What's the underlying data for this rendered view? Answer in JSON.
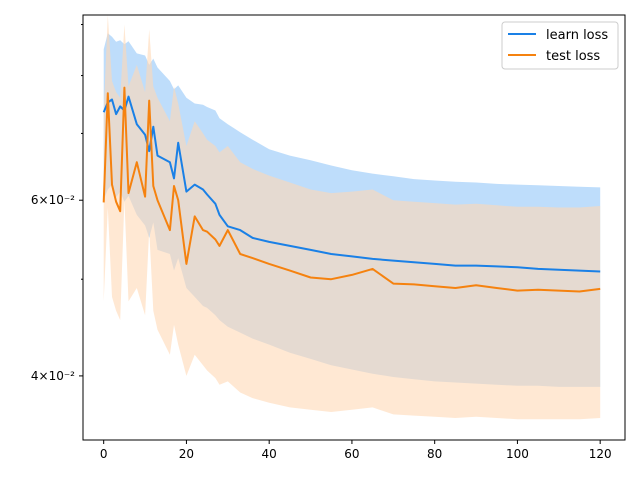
{
  "chart_data": {
    "type": "line",
    "title": "",
    "xlabel": "",
    "ylabel": "",
    "y_scale": "log",
    "xlim": [
      -5,
      126
    ],
    "ylim": [
      0.0345,
      0.092
    ],
    "grid": false,
    "legend_position": "top-right",
    "x_ticks": [
      0,
      20,
      40,
      60,
      80,
      100,
      120
    ],
    "x_tick_labels": [
      "0",
      "20",
      "40",
      "60",
      "80",
      "100",
      "120"
    ],
    "y_major_ticks": [
      0.04,
      0.06
    ],
    "y_tick_labels": [
      "4×10⁻²",
      "6×10⁻²"
    ],
    "y_minor_ticks": [
      0.05,
      0.07,
      0.08,
      0.09
    ],
    "x_anchor": [
      0,
      1,
      2,
      3,
      4,
      5,
      6,
      8,
      10,
      11,
      12,
      13,
      16,
      17,
      18,
      20,
      22,
      24,
      25,
      27,
      28,
      30,
      33,
      36,
      40,
      45,
      50,
      55,
      60,
      65,
      70,
      75,
      80,
      85,
      90,
      95,
      100,
      105,
      110,
      115,
      120
    ],
    "series": [
      {
        "name": "learn loss",
        "color": "#1f77b4",
        "line_color": "#1a80e6",
        "band_color": "#a8d2fa",
        "values": [
          0.0735,
          0.0752,
          0.0757,
          0.0732,
          0.0745,
          0.0738,
          0.0762,
          0.0715,
          0.0698,
          0.0672,
          0.0711,
          0.0665,
          0.0655,
          0.0631,
          0.0685,
          0.0612,
          0.0622,
          0.0615,
          0.0608,
          0.0595,
          0.058,
          0.0565,
          0.056,
          0.055,
          0.0545,
          0.054,
          0.0535,
          0.053,
          0.0527,
          0.0524,
          0.0522,
          0.052,
          0.0518,
          0.0516,
          0.0516,
          0.0515,
          0.0514,
          0.0512,
          0.0511,
          0.051,
          0.0509
        ],
        "upper": [
          0.085,
          0.0882,
          0.0875,
          0.0865,
          0.0868,
          0.086,
          0.0866,
          0.0842,
          0.0838,
          0.082,
          0.0832,
          0.0815,
          0.079,
          0.0775,
          0.0782,
          0.076,
          0.075,
          0.0748,
          0.0744,
          0.0738,
          0.0725,
          0.0715,
          0.0702,
          0.069,
          0.0675,
          0.0665,
          0.0658,
          0.065,
          0.0643,
          0.0638,
          0.0634,
          0.063,
          0.0628,
          0.0626,
          0.0625,
          0.0623,
          0.0622,
          0.0621,
          0.062,
          0.0619,
          0.0618
        ],
        "lower": [
          0.06,
          0.0615,
          0.0622,
          0.0604,
          0.0612,
          0.0598,
          0.0606,
          0.058,
          0.0566,
          0.055,
          0.057,
          0.0535,
          0.053,
          0.051,
          0.0525,
          0.049,
          0.048,
          0.047,
          0.0468,
          0.046,
          0.0455,
          0.0448,
          0.0442,
          0.0436,
          0.043,
          0.0422,
          0.0416,
          0.041,
          0.0406,
          0.0402,
          0.0399,
          0.0397,
          0.0395,
          0.0394,
          0.0393,
          0.0392,
          0.0391,
          0.0391,
          0.039,
          0.039,
          0.039
        ]
      },
      {
        "name": "test loss",
        "color": "#ff7f0e",
        "line_color": "#f5820f",
        "band_color": "#ffd9b6",
        "values": [
          0.0597,
          0.0768,
          0.0622,
          0.0598,
          0.0585,
          0.0778,
          0.061,
          0.0655,
          0.0605,
          0.0755,
          0.062,
          0.06,
          0.056,
          0.062,
          0.06,
          0.0518,
          0.0578,
          0.056,
          0.0558,
          0.0548,
          0.054,
          0.056,
          0.053,
          0.0525,
          0.0518,
          0.051,
          0.0502,
          0.05,
          0.0505,
          0.0512,
          0.0495,
          0.0494,
          0.0492,
          0.049,
          0.0493,
          0.049,
          0.0487,
          0.0488,
          0.0487,
          0.0486,
          0.0489
        ],
        "upper": [
          0.0735,
          0.092,
          0.079,
          0.077,
          0.076,
          0.09,
          0.078,
          0.082,
          0.077,
          0.089,
          0.078,
          0.076,
          0.072,
          0.078,
          0.075,
          0.068,
          0.072,
          0.07,
          0.069,
          0.068,
          0.067,
          0.068,
          0.0655,
          0.0645,
          0.0635,
          0.0625,
          0.0615,
          0.061,
          0.0612,
          0.0615,
          0.06,
          0.0598,
          0.0596,
          0.0594,
          0.0595,
          0.0593,
          0.0591,
          0.0591,
          0.059,
          0.059,
          0.0592
        ],
        "lower": [
          0.0475,
          0.059,
          0.048,
          0.0465,
          0.0455,
          0.06,
          0.0475,
          0.049,
          0.046,
          0.056,
          0.0465,
          0.0445,
          0.042,
          0.045,
          0.043,
          0.04,
          0.042,
          0.041,
          0.0405,
          0.0398,
          0.0392,
          0.0395,
          0.0385,
          0.038,
          0.0376,
          0.0372,
          0.037,
          0.0368,
          0.037,
          0.0372,
          0.0366,
          0.0365,
          0.0364,
          0.0363,
          0.0364,
          0.0363,
          0.0362,
          0.0362,
          0.0362,
          0.0362,
          0.0363
        ]
      }
    ]
  }
}
